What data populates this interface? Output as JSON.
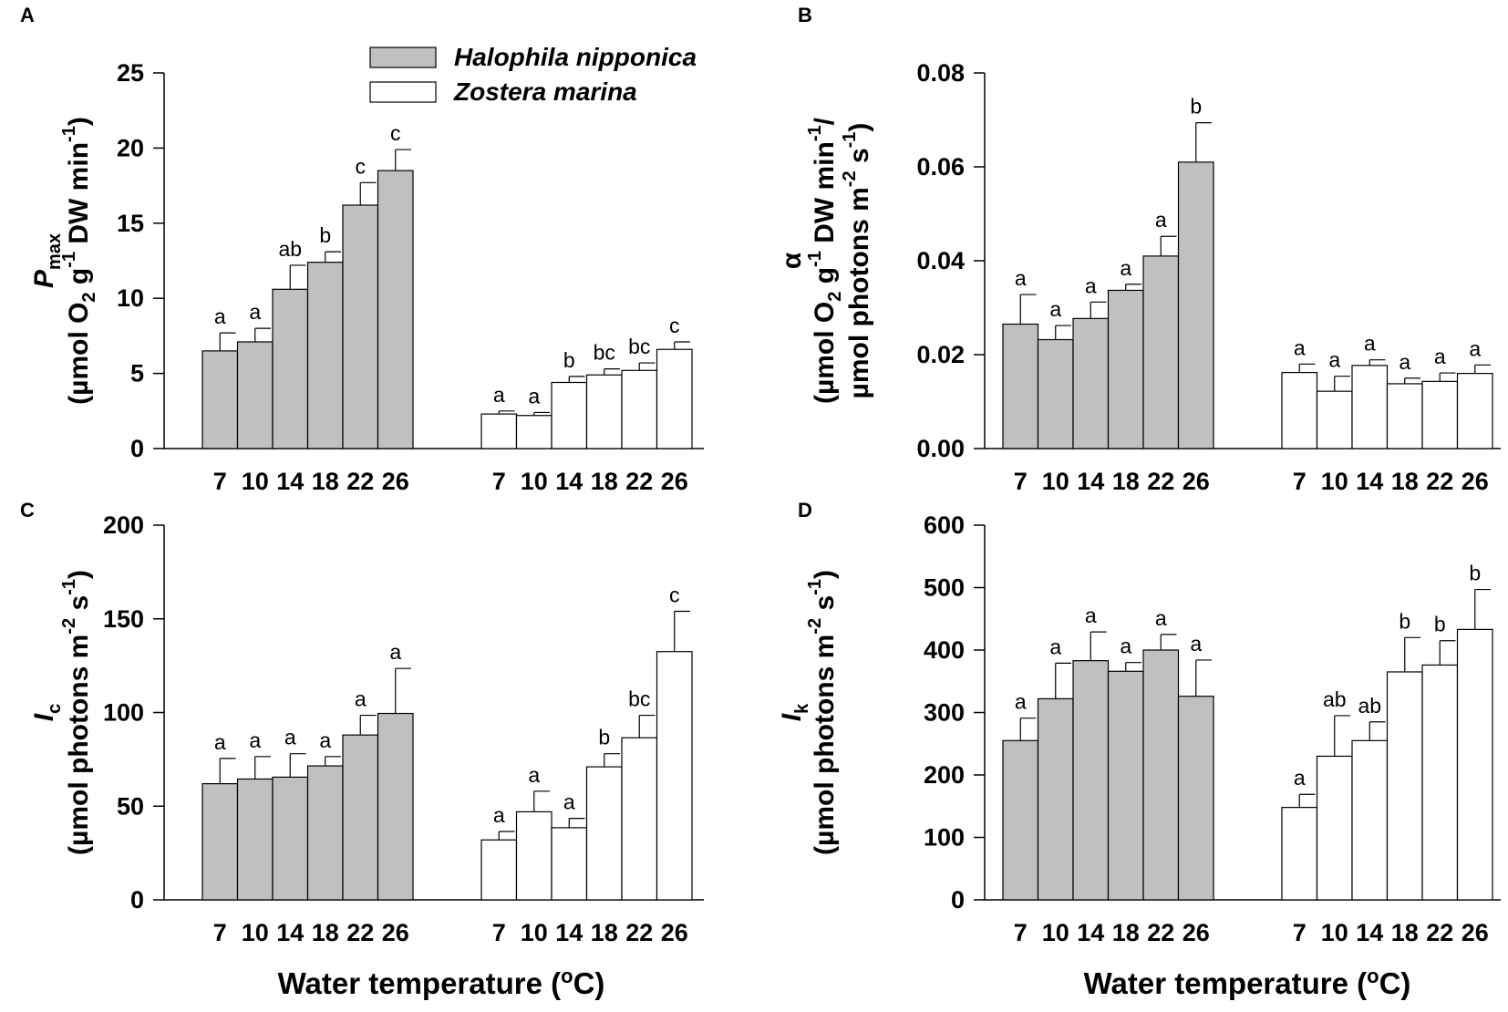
{
  "legend": {
    "items": [
      {
        "label": "Halophila nipponica",
        "color": "#c0c0c0"
      },
      {
        "label": "Zostera marina",
        "color": "#ffffff"
      }
    ]
  },
  "x_axis_title": {
    "pre": "Water temperature (",
    "sup": "o",
    "post": "C)"
  },
  "chart_data": [
    {
      "panel": "A",
      "type": "bar",
      "ylim": [
        0,
        25
      ],
      "yticks": [
        0,
        5,
        10,
        15,
        20,
        25
      ],
      "ylabel_lines": [
        [
          {
            "t": "P",
            "i": true
          },
          {
            "t": "max",
            "sub": true
          }
        ],
        [
          {
            "t": "(µmol O"
          },
          {
            "t": "2",
            "sub": true
          },
          {
            "t": " g"
          },
          {
            "t": "-1",
            "sup": true
          },
          {
            "t": " DW min"
          },
          {
            "t": "-1",
            "sup": true
          },
          {
            "t": ")"
          }
        ]
      ],
      "categories": [
        "7",
        "10",
        "14",
        "18",
        "22",
        "26"
      ],
      "series": [
        {
          "name": "Halophila nipponica",
          "values": [
            6.5,
            7.1,
            10.6,
            12.4,
            16.2,
            18.5
          ],
          "errors": [
            1.2,
            0.9,
            1.6,
            0.7,
            1.5,
            1.4
          ],
          "labels": [
            "a",
            "a",
            "ab",
            "b",
            "c",
            "c"
          ]
        },
        {
          "name": "Zostera marina",
          "values": [
            2.3,
            2.2,
            4.4,
            4.9,
            5.2,
            6.6
          ],
          "errors": [
            0.2,
            0.2,
            0.4,
            0.4,
            0.5,
            0.5
          ],
          "labels": [
            "a",
            "a",
            "b",
            "bc",
            "bc",
            "c"
          ]
        }
      ]
    },
    {
      "panel": "B",
      "type": "bar",
      "ylim": [
        0,
        0.08
      ],
      "yticks": [
        "0.00",
        "0.02",
        "0.04",
        "0.06",
        "0.08"
      ],
      "ylabel_lines": [
        [
          {
            "t": "α"
          }
        ],
        [
          {
            "t": "(µmol O"
          },
          {
            "t": "2",
            "sub": true
          },
          {
            "t": " g"
          },
          {
            "t": "-1",
            "sup": true
          },
          {
            "t": " DW min"
          },
          {
            "t": "-1",
            "sup": true
          },
          {
            "t": "/"
          }
        ],
        [
          {
            "t": "µmol photons m"
          },
          {
            "t": "-2",
            "sup": true
          },
          {
            "t": " s"
          },
          {
            "t": "-1",
            "sup": true
          },
          {
            "t": ")"
          }
        ]
      ],
      "categories": [
        "7",
        "10",
        "14",
        "18",
        "22",
        "26"
      ],
      "series": [
        {
          "name": "Halophila nipponica",
          "values": [
            0.0265,
            0.0232,
            0.0277,
            0.0337,
            0.041,
            0.061
          ],
          "errors": [
            0.0063,
            0.003,
            0.0035,
            0.0013,
            0.0042,
            0.0084
          ],
          "labels": [
            "a",
            "a",
            "a",
            "a",
            "a",
            "b"
          ]
        },
        {
          "name": "Zostera marina",
          "values": [
            0.0162,
            0.0122,
            0.0177,
            0.0138,
            0.0143,
            0.016
          ],
          "errors": [
            0.0018,
            0.0032,
            0.0012,
            0.0012,
            0.0018,
            0.0018
          ],
          "labels": [
            "a",
            "a",
            "a",
            "a",
            "a",
            "a"
          ]
        }
      ]
    },
    {
      "panel": "C",
      "type": "bar",
      "ylim": [
        0,
        200
      ],
      "yticks": [
        0,
        50,
        100,
        150,
        200
      ],
      "ylabel_lines": [
        [
          {
            "t": "I",
            "i": true
          },
          {
            "t": "c",
            "sub": true
          }
        ],
        [
          {
            "t": "(µmol photons m"
          },
          {
            "t": "-2",
            "sup": true
          },
          {
            "t": " s"
          },
          {
            "t": "-1",
            "sup": true
          },
          {
            "t": ")"
          }
        ]
      ],
      "categories": [
        "7",
        "10",
        "14",
        "18",
        "22",
        "26"
      ],
      "series": [
        {
          "name": "Halophila nipponica",
          "values": [
            62,
            64.5,
            65.5,
            71.5,
            88,
            99.5
          ],
          "errors": [
            13.5,
            12,
            12.5,
            5,
            10.5,
            24
          ],
          "labels": [
            "a",
            "a",
            "a",
            "a",
            "a",
            "a"
          ]
        },
        {
          "name": "Zostera marina",
          "values": [
            32,
            47,
            38.5,
            71,
            86.5,
            132.5
          ],
          "errors": [
            4.5,
            11,
            5,
            7,
            12,
            21.5
          ],
          "labels": [
            "a",
            "a",
            "a",
            "b",
            "bc",
            "c"
          ]
        }
      ]
    },
    {
      "panel": "D",
      "type": "bar",
      "ylim": [
        0,
        600
      ],
      "yticks": [
        0,
        100,
        200,
        300,
        400,
        500,
        600
      ],
      "ylabel_lines": [
        [
          {
            "t": "I",
            "i": true
          },
          {
            "t": "k",
            "sub": true
          }
        ],
        [
          {
            "t": "(µmol photons m"
          },
          {
            "t": "-2",
            "sup": true
          },
          {
            "t": " s"
          },
          {
            "t": "-1",
            "sup": true
          },
          {
            "t": ")"
          }
        ]
      ],
      "categories": [
        "7",
        "10",
        "14",
        "18",
        "22",
        "26"
      ],
      "series": [
        {
          "name": "Halophila nipponica",
          "values": [
            255,
            322,
            383,
            366,
            400,
            326
          ],
          "errors": [
            36,
            57,
            46,
            14,
            25,
            58
          ],
          "labels": [
            "a",
            "a",
            "a",
            "a",
            "a",
            "a"
          ]
        },
        {
          "name": "Zostera marina",
          "values": [
            148,
            230,
            255,
            365,
            376,
            433
          ],
          "errors": [
            21,
            65,
            30,
            55,
            39,
            64
          ],
          "labels": [
            "a",
            "ab",
            "ab",
            "b",
            "b",
            "b"
          ]
        }
      ]
    }
  ]
}
